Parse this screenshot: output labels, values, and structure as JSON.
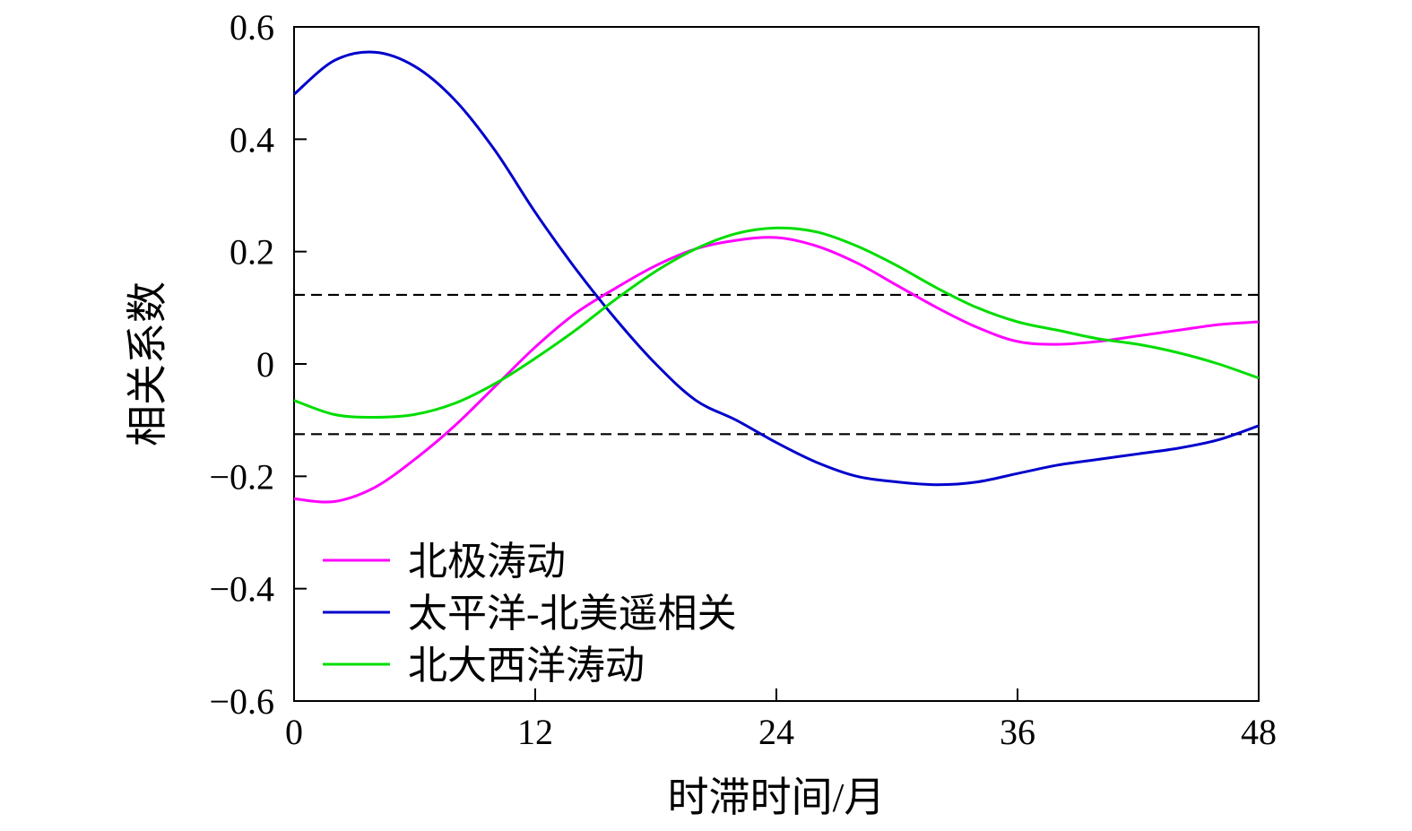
{
  "chart_data": {
    "type": "line",
    "xlabel": "时滞时间/月",
    "ylabel": "相关系数",
    "xlim": [
      0,
      48
    ],
    "ylim": [
      -0.6,
      0.6
    ],
    "xticks": [
      0,
      12,
      24,
      36,
      48
    ],
    "xtick_labels": [
      "0",
      "12",
      "24",
      "36",
      "48"
    ],
    "yticks": [
      0.6,
      0.4,
      0.2,
      0,
      -0.2,
      -0.4,
      -0.6
    ],
    "ytick_labels": [
      "0.6",
      "0.4",
      "0.2",
      "0",
      "−0.2",
      "−0.4",
      "−0.6"
    ],
    "grid": false,
    "legend_position": "bottom-left",
    "reference_lines": [
      0.123,
      -0.125
    ],
    "x": [
      0,
      2,
      4,
      6,
      8,
      10,
      12,
      14,
      16,
      18,
      20,
      22,
      24,
      26,
      28,
      30,
      32,
      34,
      36,
      38,
      40,
      42,
      44,
      46,
      48
    ],
    "series": [
      {
        "name": "北极涛动",
        "color": "#ff00ff",
        "values": [
          -0.24,
          -0.245,
          -0.22,
          -0.17,
          -0.11,
          -0.04,
          0.03,
          0.09,
          0.135,
          0.175,
          0.205,
          0.22,
          0.225,
          0.21,
          0.18,
          0.14,
          0.1,
          0.065,
          0.04,
          0.035,
          0.04,
          0.05,
          0.06,
          0.07,
          0.075
        ]
      },
      {
        "name": "太平洋-北美遥相关",
        "color": "#0000cc",
        "values": [
          0.48,
          0.54,
          0.555,
          0.53,
          0.47,
          0.38,
          0.27,
          0.17,
          0.08,
          0.0,
          -0.065,
          -0.1,
          -0.14,
          -0.175,
          -0.2,
          -0.21,
          -0.215,
          -0.21,
          -0.195,
          -0.18,
          -0.17,
          -0.16,
          -0.15,
          -0.135,
          -0.11
        ]
      },
      {
        "name": "北大西洋涛动",
        "color": "#00dd00",
        "values": [
          -0.065,
          -0.09,
          -0.095,
          -0.09,
          -0.07,
          -0.035,
          0.01,
          0.06,
          0.115,
          0.165,
          0.205,
          0.232,
          0.242,
          0.235,
          0.21,
          0.175,
          0.135,
          0.1,
          0.075,
          0.06,
          0.045,
          0.035,
          0.02,
          0.0,
          -0.025
        ]
      }
    ]
  }
}
